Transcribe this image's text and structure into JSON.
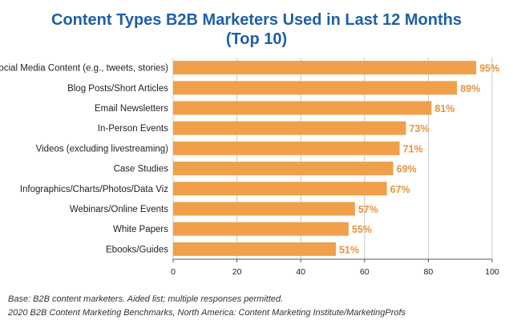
{
  "chart_data": {
    "type": "bar",
    "orientation": "horizontal",
    "title_line1": "Content Types B2B Marketers Used in Last 12 Months",
    "title_line2": "(Top 10)",
    "categories": [
      "Social Media Content (e.g., tweets, stories)",
      "Blog Posts/Short Articles",
      "Email Newsletters",
      "In-Person Events",
      "Videos (excluding livestreaming)",
      "Case Studies",
      "Infographics/Charts/Photos/Data Viz",
      "Webinars/Online Events",
      "White Papers",
      "Ebooks/Guides"
    ],
    "values": [
      95,
      89,
      81,
      73,
      71,
      69,
      67,
      57,
      55,
      51
    ],
    "value_labels": [
      "95%",
      "89%",
      "81%",
      "73%",
      "71%",
      "69%",
      "67%",
      "57%",
      "55%",
      "51%"
    ],
    "xlim": [
      0,
      100
    ],
    "xticks": [
      0,
      20,
      40,
      60,
      80,
      100
    ],
    "grid": "vertical",
    "bar_color": "#f0a04b",
    "label_color": "#e8923a",
    "title_color": "#1f5fa6"
  },
  "footnotes": {
    "line1": "Base: B2B content marketers. Aided list; multiple responses permitted.",
    "line2": "2020 B2B Content Marketing Benchmarks, North America: Content Marketing Institute/MarketingProfs"
  }
}
